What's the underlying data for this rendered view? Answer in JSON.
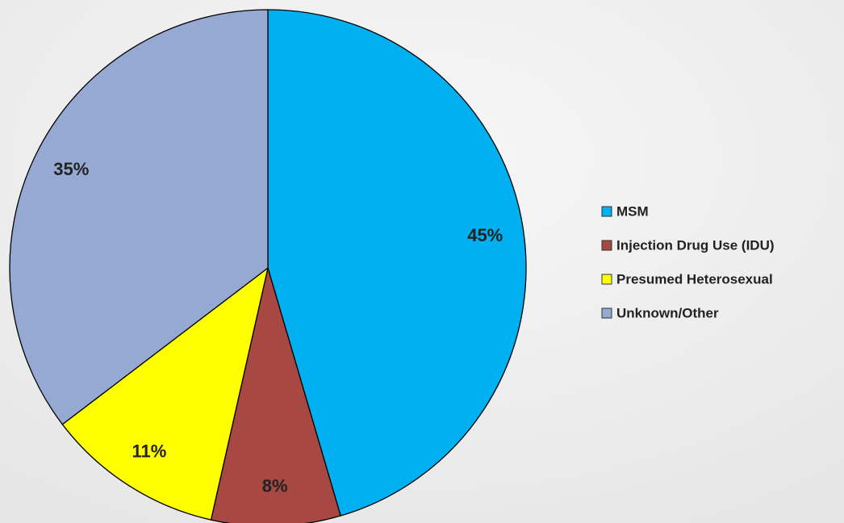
{
  "chart_data": {
    "type": "pie",
    "categories": [
      "MSM",
      "Injection Drug Use (IDU)",
      "Presumed Heterosexual",
      "Unknown/Other"
    ],
    "values": [
      45,
      8,
      11,
      35
    ],
    "value_labels": [
      "45%",
      "8%",
      "11%",
      "35%"
    ],
    "colors": [
      "#00b0f0",
      "#a84843",
      "#ffff00",
      "#95a9d2"
    ],
    "legend": "right"
  }
}
